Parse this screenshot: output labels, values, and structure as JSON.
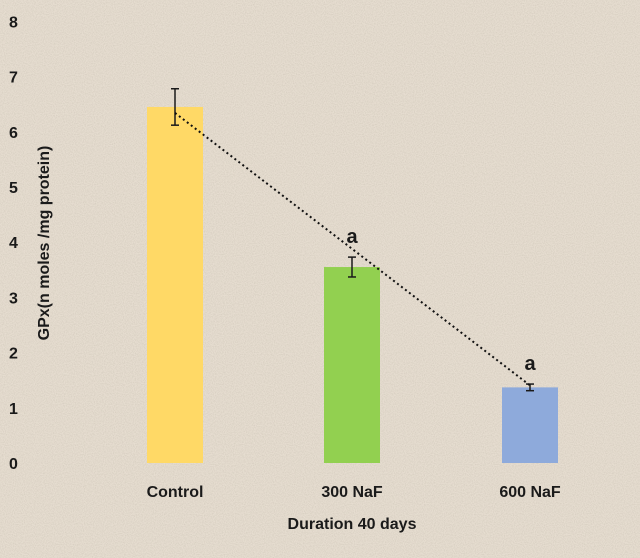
{
  "chart_data": {
    "type": "bar",
    "categories": [
      "Control",
      "300 NaF",
      "600 NaF"
    ],
    "values": [
      6.45,
      3.55,
      1.37
    ],
    "errors": [
      0.33,
      0.18,
      0.06
    ],
    "bar_colors": [
      "#ffd966",
      "#92d050",
      "#8eaadb"
    ],
    "significance": [
      "",
      "a",
      "a"
    ],
    "trendline": "dotted",
    "xlabel": "Duration 40 days",
    "ylabel": "GPx(n moles /mg protein)",
    "ylim": [
      0,
      8
    ],
    "yticks": [
      0,
      1,
      2,
      3,
      4,
      5,
      6,
      7,
      8
    ],
    "grid": false
  }
}
